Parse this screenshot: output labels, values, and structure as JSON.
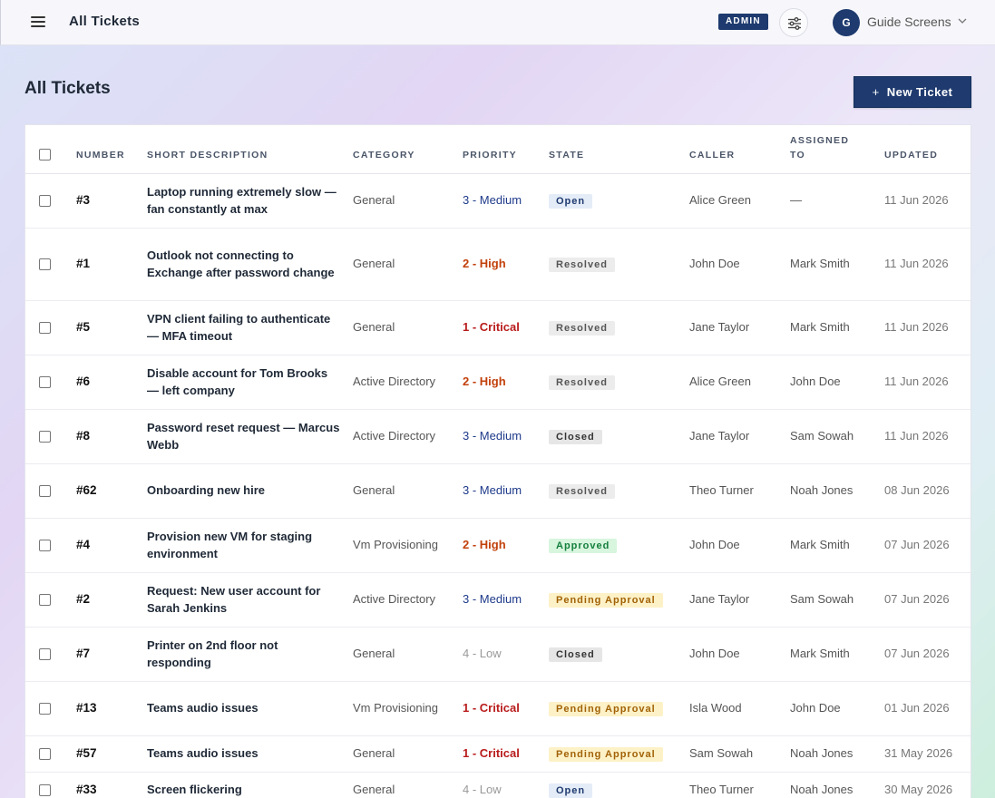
{
  "header": {
    "title": "All Tickets",
    "admin_badge": "ADMIN",
    "user": {
      "initial": "G",
      "name": "Guide Screens"
    }
  },
  "page": {
    "title": "All Tickets",
    "new_ticket_label": "New Ticket",
    "new_ticket_icon": "+"
  },
  "table": {
    "columns": {
      "number": "NUMBER",
      "description": "SHORT DESCRIPTION",
      "category": "CATEGORY",
      "priority": "PRIORITY",
      "state": "STATE",
      "caller": "CALLER",
      "assigned_line1": "ASSIGNED",
      "assigned_line2": "TO",
      "updated": "UPDATED"
    },
    "rows": [
      {
        "number": "#3",
        "description": "Laptop running extremely slow — fan constantly at max",
        "category": "General",
        "priority": "3 - Medium",
        "priority_level": "medium",
        "state": "Open",
        "state_kind": "open",
        "caller": "Alice Green",
        "assigned": "—",
        "updated": "11 Jun 2026",
        "height": 60
      },
      {
        "number": "#1",
        "description": "Outlook not connecting to Exchange after password change",
        "category": "General",
        "priority": "2 - High",
        "priority_level": "high",
        "state": "Resolved",
        "state_kind": "resolved",
        "caller": "John Doe",
        "assigned": "Mark Smith",
        "updated": "11 Jun 2026",
        "height": 80
      },
      {
        "number": "#5",
        "description": "VPN client failing to authenticate — MFA timeout",
        "category": "General",
        "priority": "1 - Critical",
        "priority_level": "critical",
        "state": "Resolved",
        "state_kind": "resolved",
        "caller": "Jane Taylor",
        "assigned": "Mark Smith",
        "updated": "11 Jun 2026",
        "height": 60
      },
      {
        "number": "#6",
        "description": "Disable account for Tom Brooks — left company",
        "category": "Active Directory",
        "priority": "2 - High",
        "priority_level": "high",
        "state": "Resolved",
        "state_kind": "resolved",
        "caller": "Alice Green",
        "assigned": "John Doe",
        "updated": "11 Jun 2026",
        "height": 60
      },
      {
        "number": "#8",
        "description": "Password reset request — Marcus Webb",
        "category": "Active Directory",
        "priority": "3 - Medium",
        "priority_level": "medium",
        "state": "Closed",
        "state_kind": "closed",
        "caller": "Jane Taylor",
        "assigned": "Sam Sowah",
        "updated": "11 Jun 2026",
        "height": 60
      },
      {
        "number": "#62",
        "description": "Onboarding new hire",
        "category": "General",
        "priority": "3 - Medium",
        "priority_level": "medium",
        "state": "Resolved",
        "state_kind": "resolved",
        "caller": "Theo Turner",
        "assigned": "Noah Jones",
        "updated": "08 Jun 2026",
        "height": 60
      },
      {
        "number": "#4",
        "description": "Provision new VM for staging environment",
        "category": "Vm Provisioning",
        "priority": "2 - High",
        "priority_level": "high",
        "state": "Approved",
        "state_kind": "approved",
        "caller": "John Doe",
        "assigned": "Mark Smith",
        "updated": "07 Jun 2026",
        "height": 60
      },
      {
        "number": "#2",
        "description": "Request: New user account for Sarah Jenkins",
        "category": "Active Directory",
        "priority": "3 - Medium",
        "priority_level": "medium",
        "state": "Pending Approval",
        "state_kind": "pending",
        "caller": "Jane Taylor",
        "assigned": "Sam Sowah",
        "updated": "07 Jun 2026",
        "height": 60
      },
      {
        "number": "#7",
        "description": "Printer on 2nd floor not responding",
        "category": "General",
        "priority": "4 - Low",
        "priority_level": "low",
        "state": "Closed",
        "state_kind": "closed",
        "caller": "John Doe",
        "assigned": "Mark Smith",
        "updated": "07 Jun 2026",
        "height": 60
      },
      {
        "number": "#13",
        "description": "Teams audio issues",
        "category": "Vm Provisioning",
        "priority": "1 - Critical",
        "priority_level": "critical",
        "state": "Pending Approval",
        "state_kind": "pending",
        "caller": "Isla Wood",
        "assigned": "John Doe",
        "updated": "01 Jun 2026",
        "height": 60
      },
      {
        "number": "#57",
        "description": "Teams audio issues",
        "category": "General",
        "priority": "1 - Critical",
        "priority_level": "critical",
        "state": "Pending Approval",
        "state_kind": "pending",
        "caller": "Sam Sowah",
        "assigned": "Noah Jones",
        "updated": "31 May 2026",
        "height": 40
      },
      {
        "number": "#33",
        "description": "Screen flickering",
        "category": "General",
        "priority": "4 - Low",
        "priority_level": "low",
        "state": "Open",
        "state_kind": "open",
        "caller": "Theo Turner",
        "assigned": "Noah Jones",
        "updated": "30 May 2026",
        "height": 40
      }
    ]
  },
  "colors": {
    "primary": "#1e3a6e",
    "priority_high": "#c2410c",
    "priority_critical": "#b91c1c",
    "priority_medium": "#1e3a8a",
    "approved": "#15803d",
    "pending": "#a16207"
  }
}
